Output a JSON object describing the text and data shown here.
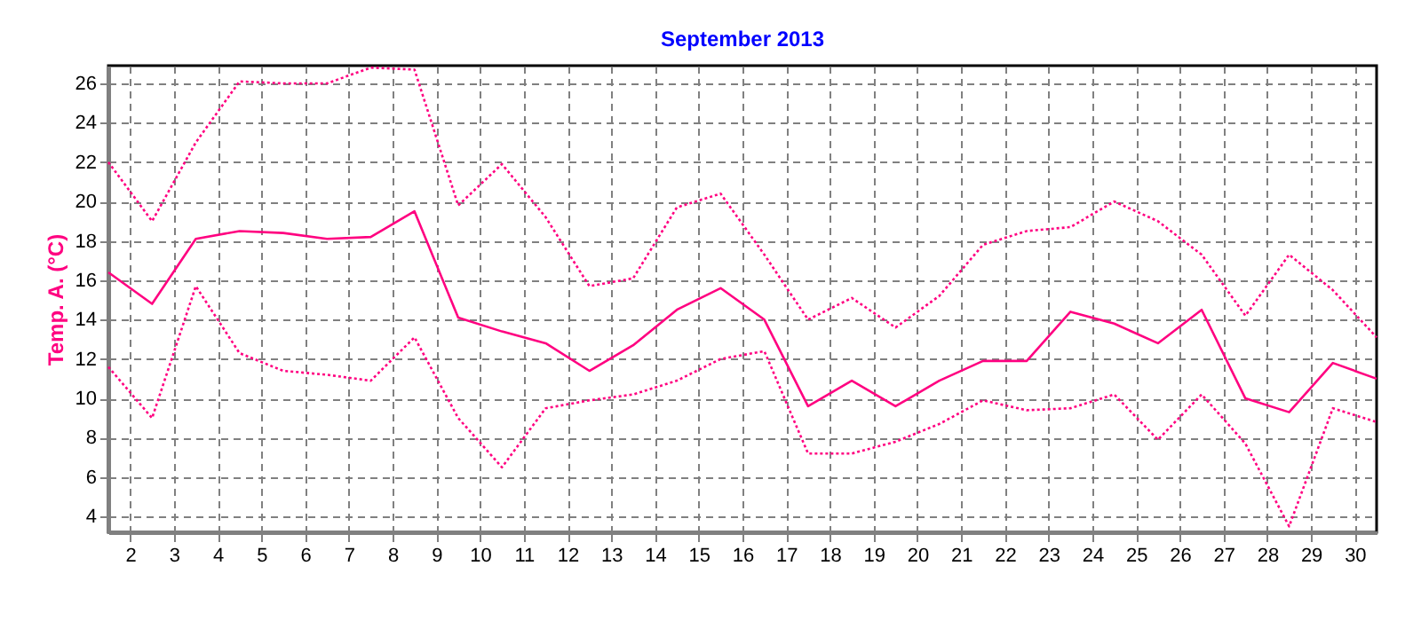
{
  "chart_data": {
    "type": "line",
    "title": "September 2013",
    "ylabel": "Temp. A. (°C)",
    "x": [
      1.5,
      2.5,
      3.5,
      4.5,
      5.5,
      6.5,
      7.5,
      8.5,
      9.5,
      10.5,
      11.5,
      12.5,
      13.5,
      14.5,
      15.5,
      16.5,
      17.5,
      18.5,
      19.5,
      20.5,
      21.5,
      22.5,
      23.5,
      24.5,
      25.5,
      26.5,
      27.5,
      28.5,
      29.5,
      30.5
    ],
    "series": [
      {
        "color": "#ff0080",
        "line_style": "dotted",
        "values": [
          22.0,
          19.0,
          23.0,
          26.1,
          26.0,
          26.0,
          26.8,
          26.7,
          19.8,
          21.9,
          19.2,
          15.7,
          16.1,
          19.7,
          20.4,
          17.3,
          14.0,
          15.1,
          13.6,
          15.2,
          17.8,
          18.5,
          18.7,
          20.0,
          19.0,
          17.3,
          14.2,
          17.3,
          15.5,
          13.1
        ]
      },
      {
        "color": "#ff0080",
        "line_style": "solid",
        "values": [
          16.4,
          14.8,
          18.1,
          18.5,
          18.4,
          18.1,
          18.2,
          19.5,
          14.1,
          13.4,
          12.8,
          11.4,
          12.7,
          14.5,
          15.6,
          14.0,
          9.6,
          10.9,
          9.6,
          10.9,
          11.9,
          11.9,
          14.4,
          13.8,
          12.8,
          14.5,
          10.0,
          9.3,
          11.8,
          11.0
        ]
      },
      {
        "color": "#ff0080",
        "line_style": "dotted",
        "values": [
          11.6,
          9.0,
          15.7,
          12.3,
          11.4,
          11.2,
          10.9,
          13.1,
          9.0,
          6.5,
          9.5,
          9.9,
          10.2,
          10.9,
          12.0,
          12.4,
          7.2,
          7.2,
          7.8,
          8.7,
          9.9,
          9.4,
          9.5,
          10.2,
          7.9,
          10.2,
          7.7,
          3.5,
          9.5,
          8.8
        ]
      }
    ],
    "xlim": [
      1.5,
      30.5
    ],
    "xticks": [
      2,
      3,
      4,
      5,
      6,
      7,
      8,
      9,
      10,
      11,
      12,
      13,
      14,
      15,
      16,
      17,
      18,
      19,
      20,
      21,
      22,
      23,
      24,
      25,
      26,
      27,
      28,
      29,
      30
    ],
    "ylim": [
      3.2,
      26.9
    ],
    "yticks": [
      4,
      6,
      8,
      10,
      12,
      14,
      16,
      18,
      20,
      22,
      24,
      26
    ],
    "grid": true
  }
}
